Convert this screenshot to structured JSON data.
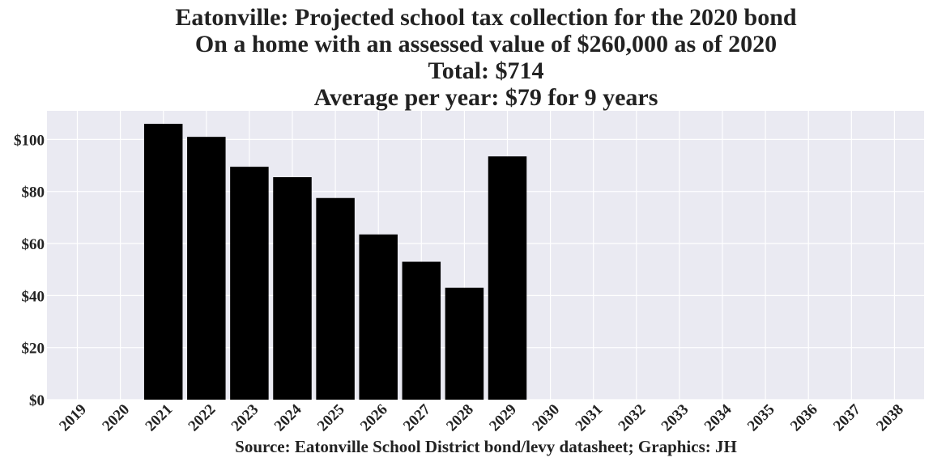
{
  "chart_data": {
    "type": "bar",
    "title_lines": [
      "Eatonville: Projected school tax collection for the 2020 bond",
      "On a home with an assessed value of $260,000 as of 2020",
      "Total: $714",
      "Average per year: $79 for 9 years"
    ],
    "categories": [
      "2019",
      "2020",
      "2021",
      "2022",
      "2023",
      "2024",
      "2025",
      "2026",
      "2027",
      "2028",
      "2029",
      "2030",
      "2031",
      "2032",
      "2033",
      "2034",
      "2035",
      "2036",
      "2037",
      "2038"
    ],
    "values": [
      0,
      0,
      106,
      101,
      89.5,
      85.5,
      77.5,
      63.5,
      53,
      43,
      93.5,
      0,
      0,
      0,
      0,
      0,
      0,
      0,
      0,
      0
    ],
    "y_ticks": [
      0,
      20,
      40,
      60,
      80,
      100
    ],
    "y_tick_labels": [
      "$0",
      "$20",
      "$40",
      "$60",
      "$80",
      "$100"
    ],
    "ylim": [
      0,
      111
    ],
    "xlabel": "Source: Eatonville School District bond/levy datasheet; Graphics: JH",
    "ylabel": "",
    "grid": true,
    "colors": {
      "bar": "#000000",
      "plot_background": "#eaeaf2",
      "grid": "#ffffff",
      "text": "#222222"
    }
  }
}
